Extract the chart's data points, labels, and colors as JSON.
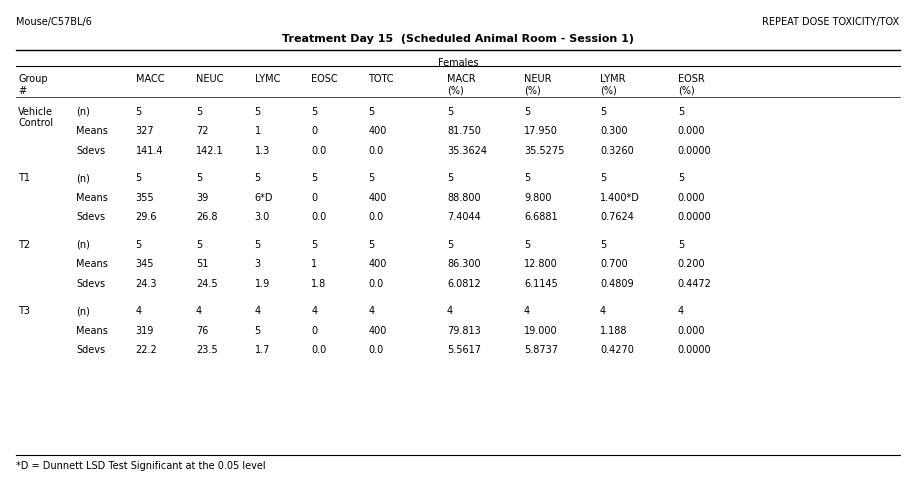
{
  "top_left": "Mouse/C57BL/6",
  "top_right": "REPEAT DOSE TOXICITY/TOX",
  "title": "Treatment Day 15  (Scheduled Animal Room - Session 1)",
  "subtitle": "Females",
  "col_headers": [
    "Group\n#",
    "MACC",
    "NEUC",
    "LYMC",
    "EOSC",
    "TOTC",
    "MACR\n(%)",
    "NEUR\n(%)",
    "LYMR\n(%)",
    "EOSR\n(%)"
  ],
  "groups": [
    {
      "name": "Vehicle\nControl",
      "rows": [
        [
          "(n)",
          "5",
          "5",
          "5",
          "5",
          "5",
          "5",
          "5",
          "5",
          "5"
        ],
        [
          "Means",
          "327",
          "72",
          "1",
          "0",
          "400",
          "81.750",
          "17.950",
          "0.300",
          "0.000"
        ],
        [
          "Sdevs",
          "141.4",
          "142.1",
          "1.3",
          "0.0",
          "0.0",
          "35.3624",
          "35.5275",
          "0.3260",
          "0.0000"
        ]
      ]
    },
    {
      "name": "T1",
      "rows": [
        [
          "(n)",
          "5",
          "5",
          "5",
          "5",
          "5",
          "5",
          "5",
          "5",
          "5"
        ],
        [
          "Means",
          "355",
          "39",
          "6*D",
          "0",
          "400",
          "88.800",
          "9.800",
          "1.400*D",
          "0.000"
        ],
        [
          "Sdevs",
          "29.6",
          "26.8",
          "3.0",
          "0.0",
          "0.0",
          "7.4044",
          "6.6881",
          "0.7624",
          "0.0000"
        ]
      ]
    },
    {
      "name": "T2",
      "rows": [
        [
          "(n)",
          "5",
          "5",
          "5",
          "5",
          "5",
          "5",
          "5",
          "5",
          "5"
        ],
        [
          "Means",
          "345",
          "51",
          "3",
          "1",
          "400",
          "86.300",
          "12.800",
          "0.700",
          "0.200"
        ],
        [
          "Sdevs",
          "24.3",
          "24.5",
          "1.9",
          "1.8",
          "0.0",
          "6.0812",
          "6.1145",
          "0.4809",
          "0.4472"
        ]
      ]
    },
    {
      "name": "T3",
      "rows": [
        [
          "(n)",
          "4",
          "4",
          "4",
          "4",
          "4",
          "4",
          "4",
          "4",
          "4"
        ],
        [
          "Means",
          "319",
          "76",
          "5",
          "0",
          "400",
          "79.813",
          "19.000",
          "1.188",
          "0.000"
        ],
        [
          "Sdevs",
          "22.2",
          "23.5",
          "1.7",
          "0.0",
          "0.0",
          "5.5617",
          "5.8737",
          "0.4270",
          "0.0000"
        ]
      ]
    }
  ],
  "footnote": "*D = Dunnett LSD Test Significant at the 0.05 level",
  "bg_color": "#ffffff",
  "text_color": "#000000",
  "font_size": 7.0,
  "title_font_size": 8.0
}
